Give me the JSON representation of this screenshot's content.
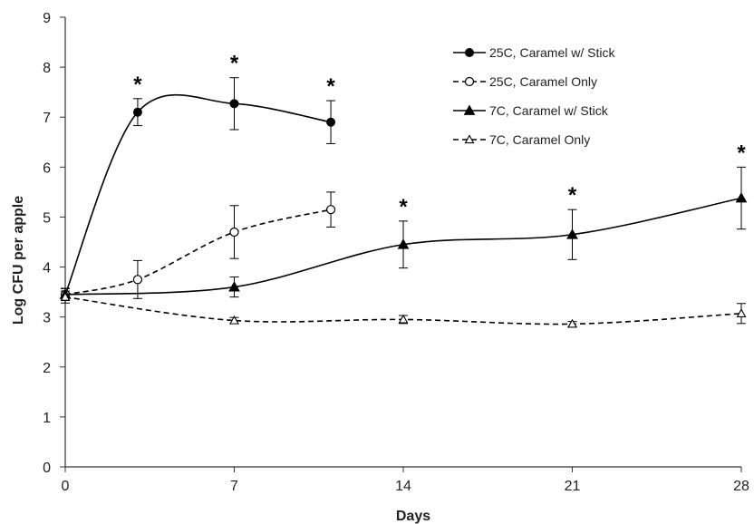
{
  "chart_data": {
    "type": "line",
    "title": "",
    "xlabel": "Days",
    "ylabel": "Log CFU per apple",
    "xlim": [
      0,
      28
    ],
    "ylim": [
      0,
      9
    ],
    "x_ticks": [
      0,
      7,
      14,
      21,
      28
    ],
    "y_ticks": [
      0,
      1,
      2,
      3,
      4,
      5,
      6,
      7,
      8,
      9
    ],
    "grid": false,
    "legend_position": "top-right",
    "series": [
      {
        "name": "25C, Caramel w/ Stick",
        "marker": "circle-filled",
        "line": "solid",
        "x": [
          0,
          3,
          7,
          11
        ],
        "y": [
          3.45,
          7.1,
          7.27,
          6.9
        ],
        "err": [
          0.12,
          0.27,
          0.52,
          0.43
        ],
        "significant": [
          false,
          true,
          true,
          true
        ]
      },
      {
        "name": "25C, Caramel Only",
        "marker": "circle-open",
        "line": "dashed",
        "x": [
          0,
          3,
          7,
          11
        ],
        "y": [
          3.45,
          3.75,
          4.7,
          5.15
        ],
        "err": [
          0.12,
          0.38,
          0.53,
          0.35
        ],
        "significant": [
          false,
          false,
          false,
          false
        ]
      },
      {
        "name": "7C, Caramel w/ Stick",
        "marker": "triangle-filled",
        "line": "solid",
        "x": [
          0,
          7,
          14,
          21,
          28
        ],
        "y": [
          3.45,
          3.6,
          4.45,
          4.65,
          5.38
        ],
        "err": [
          0.12,
          0.2,
          0.47,
          0.5,
          0.62
        ],
        "significant": [
          false,
          false,
          true,
          true,
          true
        ]
      },
      {
        "name": "7C, Caramel Only",
        "marker": "triangle-open",
        "line": "dashed",
        "x": [
          0,
          7,
          14,
          21,
          28
        ],
        "y": [
          3.4,
          2.93,
          2.95,
          2.86,
          3.07
        ],
        "err": [
          0.12,
          0.06,
          0.08,
          0.05,
          0.2
        ],
        "significant": [
          false,
          false,
          false,
          false,
          false
        ]
      }
    ],
    "annotations": {
      "significance_mark": "*"
    }
  }
}
